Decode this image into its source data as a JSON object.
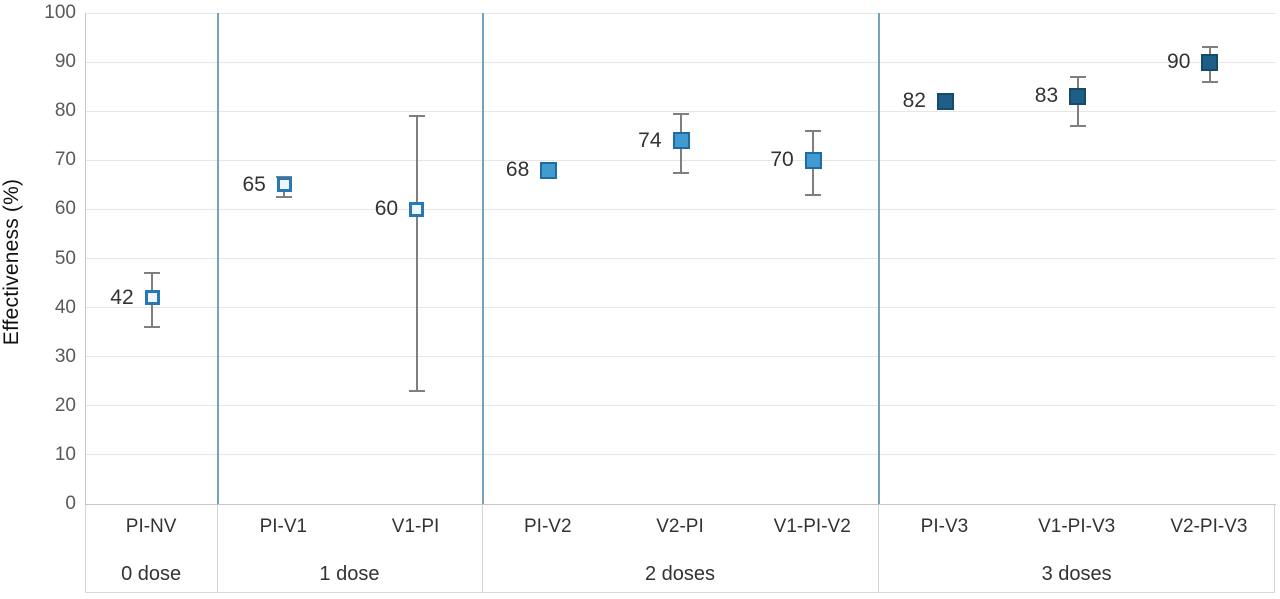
{
  "chart_data": {
    "type": "scatter",
    "title": "",
    "xlabel": "",
    "ylabel": "Effectiveness (%)",
    "ylim": [
      0,
      100
    ],
    "yticks": [
      0,
      10,
      20,
      30,
      40,
      50,
      60,
      70,
      80,
      90,
      100
    ],
    "grid": "horizontal",
    "legend": "none",
    "colors": {
      "separator_line": "#5d92b1",
      "gridline": "#e7e7e7",
      "axis_line": "#c6c6c6",
      "error_bar": "#7f7f7f",
      "tick_label": "#595959",
      "text": "#333333"
    },
    "marker_styles": {
      "open": {
        "fill": "#eef6fc",
        "border": "#2878b5",
        "size": 15,
        "border_width": 3
      },
      "medium": {
        "fill": "#3f9bd0",
        "border": "#1e6ca3",
        "size": 17,
        "border_width": 2
      },
      "dark": {
        "fill": "#1d5f86",
        "border": "#154a68",
        "size": 17,
        "border_width": 2
      }
    },
    "groups": [
      {
        "label": "0 dose",
        "points": [
          {
            "category": "PI-NV",
            "value": 42,
            "value_label": "42",
            "ci": [
              36,
              47
            ],
            "style": "open"
          }
        ]
      },
      {
        "label": "1 dose",
        "points": [
          {
            "category": "PI-V1",
            "value": 65,
            "value_label": "65",
            "ci": [
              62.5,
              66.5
            ],
            "style": "open"
          },
          {
            "category": "V1-PI",
            "value": 60,
            "value_label": "60",
            "ci": [
              23,
              79
            ],
            "style": "open"
          }
        ]
      },
      {
        "label": "2 doses",
        "points": [
          {
            "category": "PI-V2",
            "value": 68,
            "value_label": "68",
            "ci": null,
            "style": "medium"
          },
          {
            "category": "V2-PI",
            "value": 74,
            "value_label": "74",
            "ci": [
              67.5,
              79.5
            ],
            "style": "medium"
          },
          {
            "category": "V1-PI-V2",
            "value": 70,
            "value_label": "70",
            "ci": [
              63,
              76
            ],
            "style": "medium"
          }
        ]
      },
      {
        "label": "3 doses",
        "points": [
          {
            "category": "PI-V3",
            "value": 82,
            "value_label": "82",
            "ci": null,
            "style": "dark"
          },
          {
            "category": "V1-PI-V3",
            "value": 83,
            "value_label": "83",
            "ci": [
              77,
              87
            ],
            "style": "dark"
          },
          {
            "category": "V2-PI-V3",
            "value": 90,
            "value_label": "90",
            "ci": [
              86,
              93
            ],
            "style": "dark"
          }
        ]
      }
    ]
  }
}
